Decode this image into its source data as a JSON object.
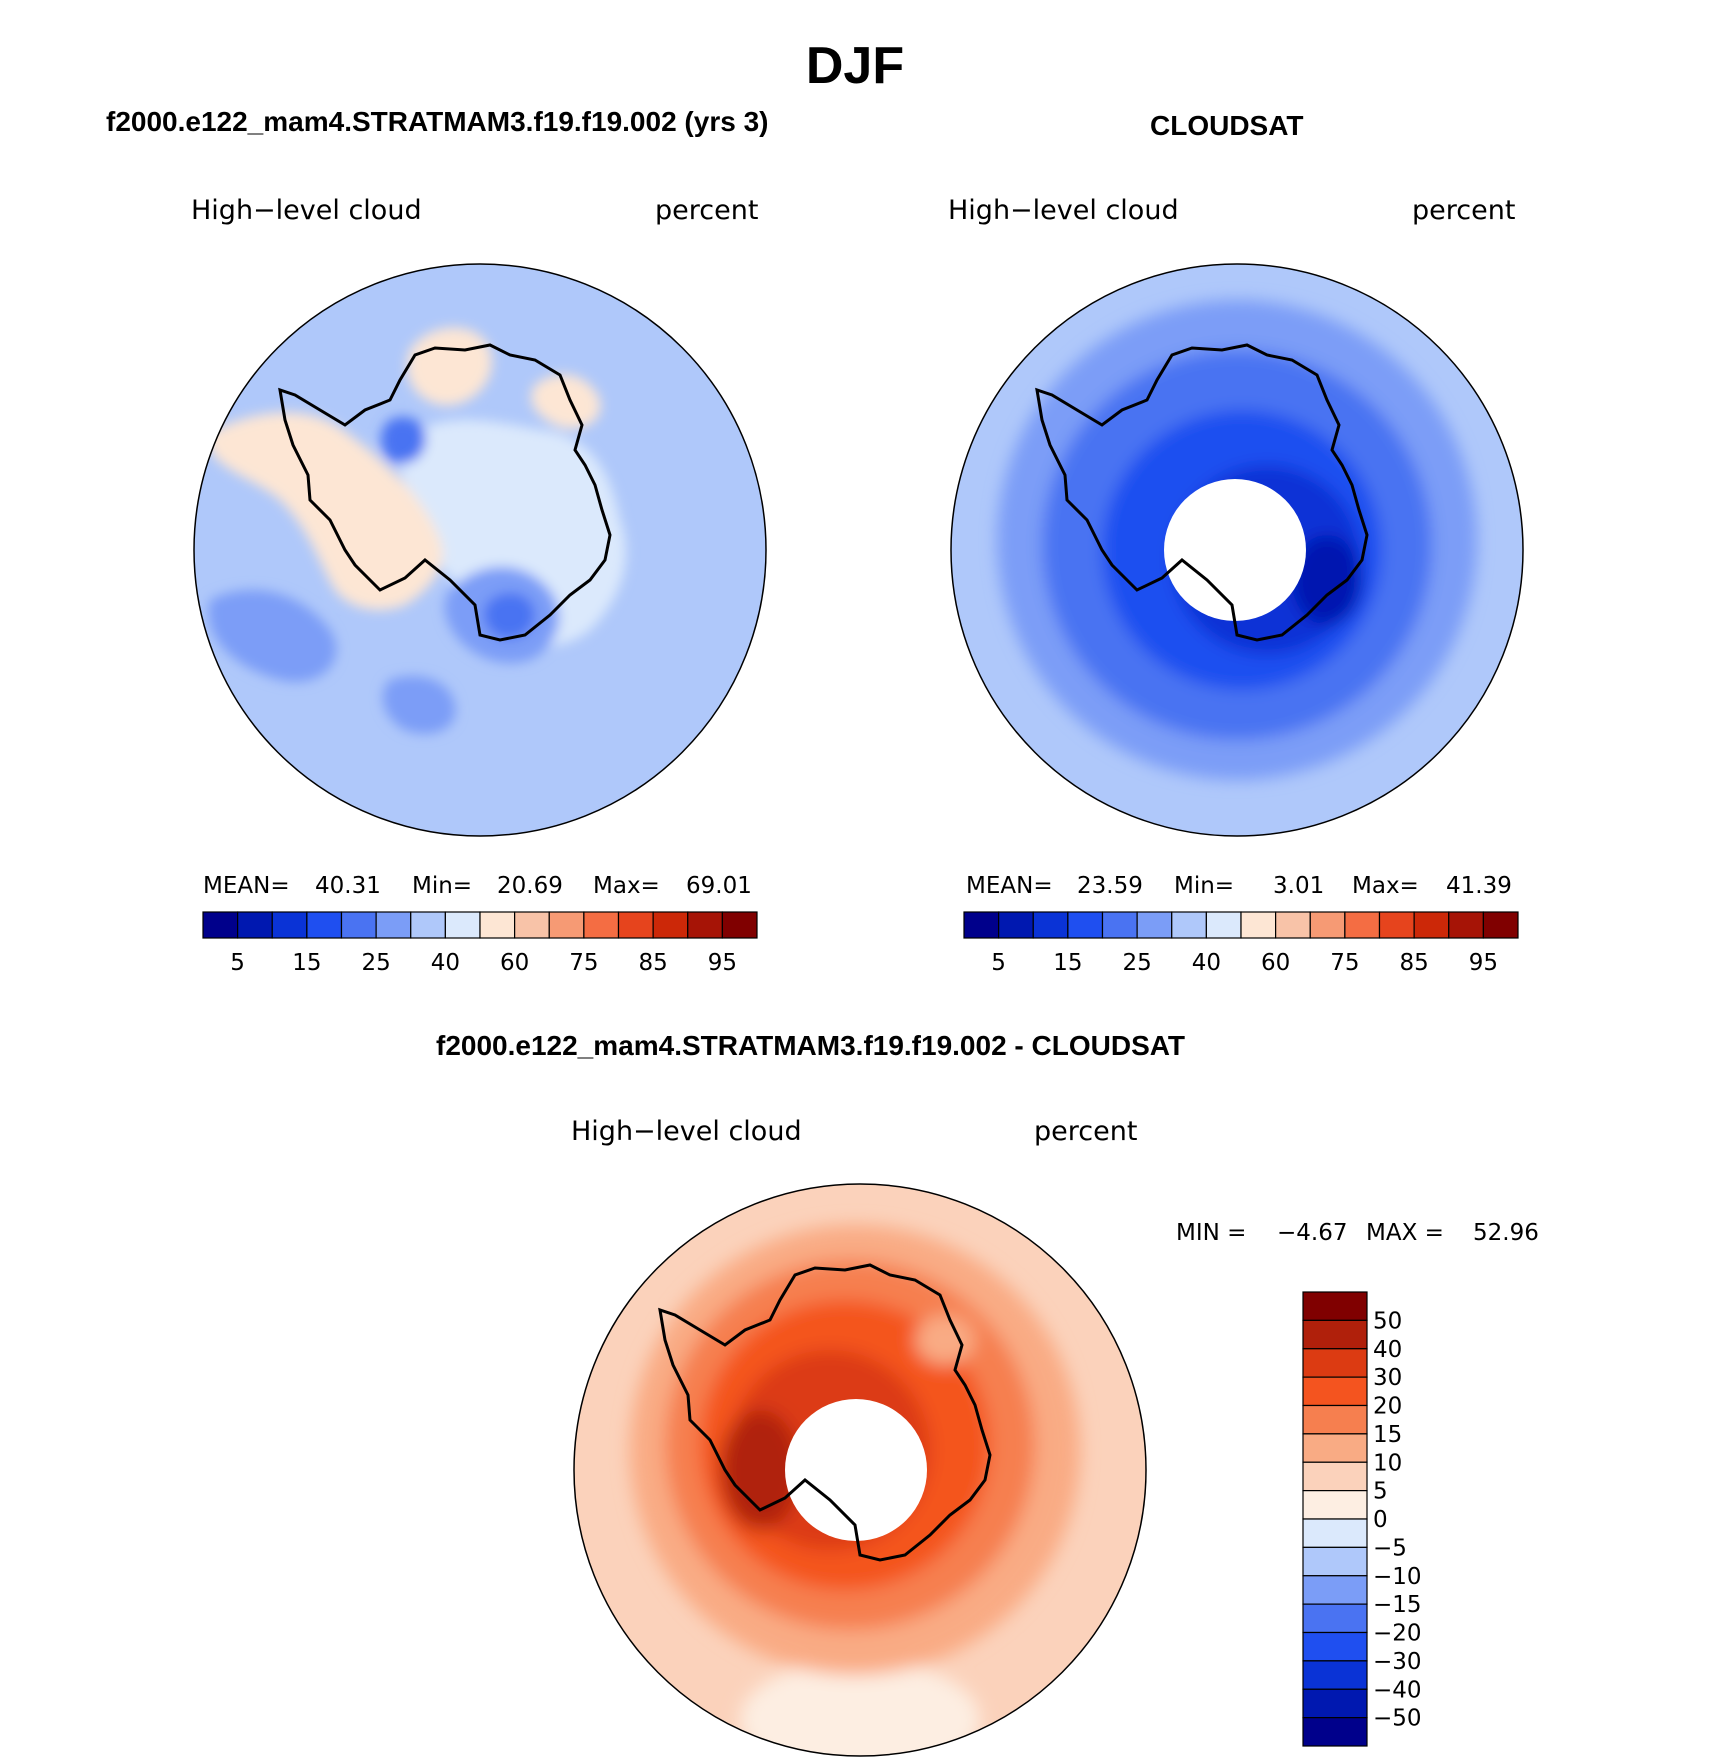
{
  "figure": {
    "season": "DJF"
  },
  "chart_data": [
    {
      "type": "heatmap",
      "id": "model",
      "projection": "south-polar-stereographic",
      "title": "f2000.e122_mam4.STRATMAM3.f19.f19.002 (yrs 3)",
      "variable": "High−level cloud",
      "units": "percent",
      "stats": {
        "mean_label": "MEAN=",
        "mean": "40.31",
        "min_label": "Min=",
        "min": "20.69",
        "max_label": "Max=",
        "max": "69.01"
      },
      "colorbar": {
        "orientation": "horizontal",
        "levels": [
          5,
          10,
          15,
          20,
          25,
          30,
          40,
          50,
          60,
          70,
          75,
          80,
          85,
          90,
          95
        ],
        "tick_labels": [
          "5",
          "15",
          "25",
          "40",
          "60",
          "75",
          "85",
          "95"
        ],
        "colors": [
          "#00008b",
          "#0018b0",
          "#0a33d6",
          "#1f4ff0",
          "#4a73f2",
          "#7b9df7",
          "#afc8fa",
          "#dbe9fc",
          "#fde6d4",
          "#f8c3a8",
          "#f69a74",
          "#f46d43",
          "#e6441d",
          "#cc2808",
          "#a61406",
          "#800000"
        ]
      },
      "fields": {
        "ocean": "#afc8fa",
        "cap": "#dbe9fc",
        "high": "#fde6d4",
        "low": "#7b9df7",
        "vlow": "#4a73f2"
      }
    },
    {
      "type": "heatmap",
      "id": "obs",
      "projection": "south-polar-stereographic",
      "title": "CLOUDSAT",
      "variable": "High−level cloud",
      "units": "percent",
      "stats": {
        "mean_label": "MEAN=",
        "mean": "23.59",
        "min_label": "Min=",
        "min": "3.01",
        "max_label": "Max=",
        "max": "41.39"
      },
      "colorbar": {
        "orientation": "horizontal",
        "levels": [
          5,
          10,
          15,
          20,
          25,
          30,
          40,
          50,
          60,
          70,
          75,
          80,
          85,
          90,
          95
        ],
        "tick_labels": [
          "5",
          "15",
          "25",
          "40",
          "60",
          "75",
          "85",
          "95"
        ],
        "colors": [
          "#00008b",
          "#0018b0",
          "#0a33d6",
          "#1f4ff0",
          "#4a73f2",
          "#7b9df7",
          "#afc8fa",
          "#dbe9fc",
          "#fde6d4",
          "#f8c3a8",
          "#f69a74",
          "#f46d43",
          "#e6441d",
          "#cc2808",
          "#a61406",
          "#800000"
        ]
      },
      "missing_pole": true
    },
    {
      "type": "heatmap",
      "id": "diff",
      "projection": "south-polar-stereographic",
      "title": "f2000.e122_mam4.STRATMAM3.f19.f19.002 - CLOUDSAT",
      "variable": "High−level cloud",
      "units": "percent",
      "stats": {
        "min_label": "MIN =",
        "min": "−4.67",
        "max_label": "MAX =",
        "max": "52.96"
      },
      "colorbar": {
        "orientation": "vertical",
        "tick_labels": [
          "50",
          "40",
          "30",
          "20",
          "15",
          "10",
          "5",
          "0",
          "−5",
          "−10",
          "−15",
          "−20",
          "−30",
          "−40",
          "−50"
        ],
        "colors": [
          "#800000",
          "#b0200b",
          "#dc3b12",
          "#f4541f",
          "#f67f4f",
          "#f9ab84",
          "#fbd2bb",
          "#fdeee2",
          "#dbe9fc",
          "#afc8fa",
          "#7b9df7",
          "#4a73f2",
          "#1f4ff0",
          "#0a33d6",
          "#0018b0",
          "#00008b"
        ]
      },
      "missing_pole": true
    }
  ]
}
